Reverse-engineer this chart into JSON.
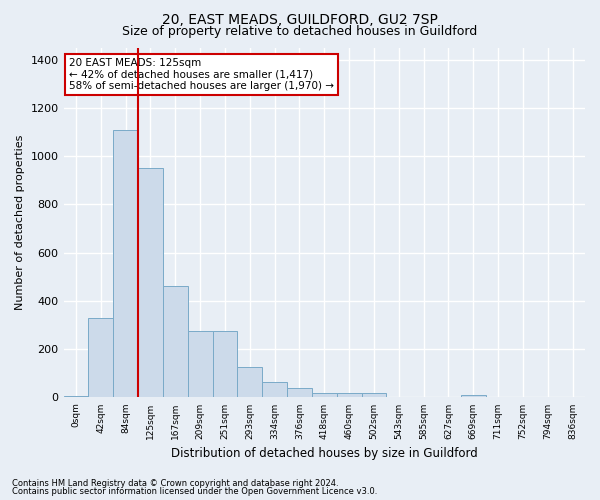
{
  "title1": "20, EAST MEADS, GUILDFORD, GU2 7SP",
  "title2": "Size of property relative to detached houses in Guildford",
  "xlabel": "Distribution of detached houses by size in Guildford",
  "ylabel": "Number of detached properties",
  "footnote1": "Contains HM Land Registry data © Crown copyright and database right 2024.",
  "footnote2": "Contains public sector information licensed under the Open Government Licence v3.0.",
  "annotation_line1": "20 EAST MEADS: 125sqm",
  "annotation_line2": "← 42% of detached houses are smaller (1,417)",
  "annotation_line3": "58% of semi-detached houses are larger (1,970) →",
  "bar_color": "#ccdaea",
  "bar_edge_color": "#7aaac8",
  "highlight_color": "#cc0000",
  "highlight_bin_index": 3,
  "categories": [
    "0sqm",
    "42sqm",
    "84sqm",
    "125sqm",
    "167sqm",
    "209sqm",
    "251sqm",
    "293sqm",
    "334sqm",
    "376sqm",
    "418sqm",
    "460sqm",
    "502sqm",
    "543sqm",
    "585sqm",
    "627sqm",
    "669sqm",
    "711sqm",
    "752sqm",
    "794sqm",
    "836sqm"
  ],
  "values": [
    5,
    330,
    1110,
    950,
    460,
    275,
    275,
    125,
    65,
    40,
    20,
    20,
    20,
    0,
    0,
    0,
    10,
    0,
    0,
    0,
    0
  ],
  "ylim": [
    0,
    1450
  ],
  "yticks": [
    0,
    200,
    400,
    600,
    800,
    1000,
    1200,
    1400
  ],
  "bg_color": "#e8eef5",
  "plot_bg_color": "#e8eef5",
  "grid_color": "#ffffff",
  "title1_fontsize": 10,
  "title2_fontsize": 9
}
